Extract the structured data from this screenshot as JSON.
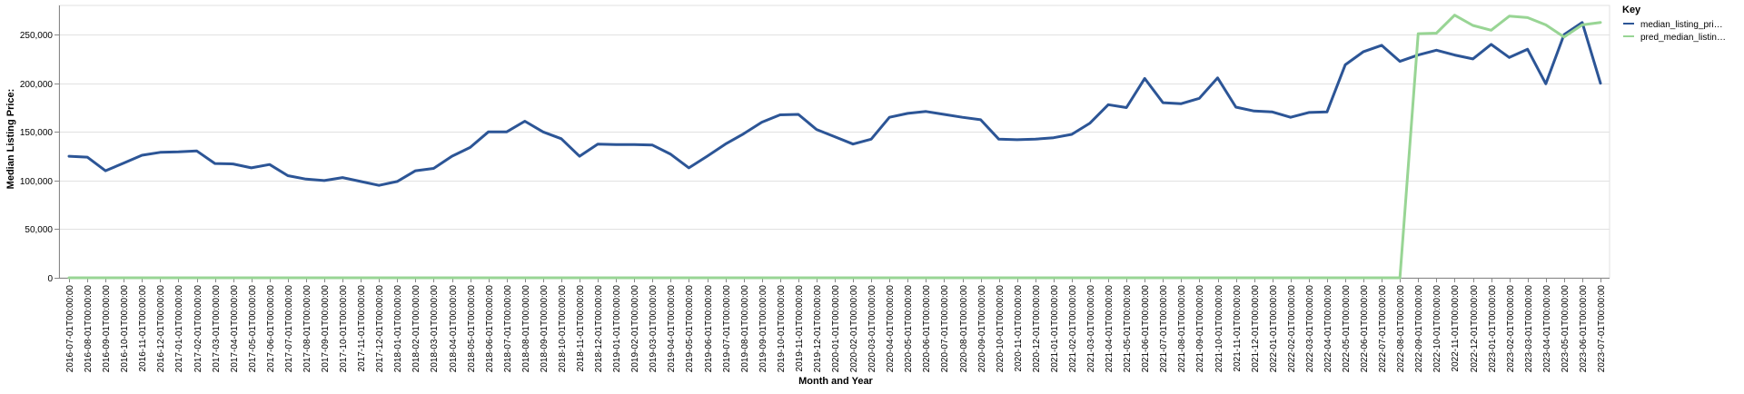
{
  "chart_data": {
    "type": "line",
    "xlabel": "Month and Year",
    "ylabel": "Median Listing Price:",
    "ylim": [
      0,
      280000
    ],
    "yticks": [
      0,
      50000,
      100000,
      150000,
      200000,
      250000
    ],
    "ytick_labels": [
      "0",
      "50,000",
      "100,000",
      "150,000",
      "200,000",
      "250,000"
    ],
    "grid": true,
    "legend": {
      "title": "Key",
      "position": "right",
      "labels": [
        "median_listing_pri…",
        "pred_median_listin…"
      ]
    },
    "x": [
      "2016-07-01T00:00:00",
      "2016-08-01T00:00:00",
      "2016-09-01T00:00:00",
      "2016-10-01T00:00:00",
      "2016-11-01T00:00:00",
      "2016-12-01T00:00:00",
      "2017-01-01T00:00:00",
      "2017-02-01T00:00:00",
      "2017-03-01T00:00:00",
      "2017-04-01T00:00:00",
      "2017-05-01T00:00:00",
      "2017-06-01T00:00:00",
      "2017-07-01T00:00:00",
      "2017-08-01T00:00:00",
      "2017-09-01T00:00:00",
      "2017-10-01T00:00:00",
      "2017-11-01T00:00:00",
      "2017-12-01T00:00:00",
      "2018-01-01T00:00:00",
      "2018-02-01T00:00:00",
      "2018-03-01T00:00:00",
      "2018-04-01T00:00:00",
      "2018-05-01T00:00:00",
      "2018-06-01T00:00:00",
      "2018-07-01T00:00:00",
      "2018-08-01T00:00:00",
      "2018-09-01T00:00:00",
      "2018-10-01T00:00:00",
      "2018-11-01T00:00:00",
      "2018-12-01T00:00:00",
      "2019-01-01T00:00:00",
      "2019-02-01T00:00:00",
      "2019-03-01T00:00:00",
      "2019-04-01T00:00:00",
      "2019-05-01T00:00:00",
      "2019-06-01T00:00:00",
      "2019-07-01T00:00:00",
      "2019-08-01T00:00:00",
      "2019-09-01T00:00:00",
      "2019-10-01T00:00:00",
      "2019-11-01T00:00:00",
      "2019-12-01T00:00:00",
      "2020-01-01T00:00:00",
      "2020-02-01T00:00:00",
      "2020-03-01T00:00:00",
      "2020-04-01T00:00:00",
      "2020-05-01T00:00:00",
      "2020-06-01T00:00:00",
      "2020-07-01T00:00:00",
      "2020-08-01T00:00:00",
      "2020-09-01T00:00:00",
      "2020-10-01T00:00:00",
      "2020-11-01T00:00:00",
      "2020-12-01T00:00:00",
      "2021-01-01T00:00:00",
      "2021-02-01T00:00:00",
      "2021-03-01T00:00:00",
      "2021-04-01T00:00:00",
      "2021-05-01T00:00:00",
      "2021-06-01T00:00:00",
      "2021-07-01T00:00:00",
      "2021-08-01T00:00:00",
      "2021-09-01T00:00:00",
      "2021-10-01T00:00:00",
      "2021-11-01T00:00:00",
      "2021-12-01T00:00:00",
      "2022-01-01T00:00:00",
      "2022-02-01T00:00:00",
      "2022-03-01T00:00:00",
      "2022-04-01T00:00:00",
      "2022-05-01T00:00:00",
      "2022-06-01T00:00:00",
      "2022-07-01T00:00:00",
      "2022-08-01T00:00:00",
      "2022-09-01T00:00:00",
      "2022-10-01T00:00:00",
      "2022-11-01T00:00:00",
      "2022-12-01T00:00:00",
      "2023-01-01T00:00:00",
      "2023-02-01T00:00:00",
      "2023-03-01T00:00:00",
      "2023-04-01T00:00:00",
      "2023-05-01T00:00:00",
      "2023-06-01T00:00:00",
      "2023-07-01T00:00:00"
    ],
    "series": [
      {
        "name": "median_listing_pri…",
        "color": "#2c5596",
        "values": [
          125000,
          124000,
          110000,
          118000,
          126000,
          129000,
          129500,
          130500,
          117500,
          117000,
          113000,
          116500,
          105000,
          101500,
          100000,
          103000,
          99000,
          95000,
          99000,
          110000,
          112500,
          125000,
          134000,
          150000,
          150000,
          161000,
          150000,
          143000,
          125000,
          137500,
          137000,
          137000,
          136500,
          127000,
          113000,
          125000,
          137500,
          148000,
          160000,
          167500,
          168000,
          152500,
          145000,
          137500,
          142500,
          165000,
          169000,
          171000,
          168000,
          165000,
          162500,
          142500,
          142000,
          142500,
          144000,
          147500,
          159000,
          178000,
          175000,
          205000,
          180000,
          179000,
          184500,
          205500,
          175500,
          171500,
          170500,
          165000,
          170000,
          170500,
          219000,
          232500,
          239000,
          222500,
          229000,
          234000,
          229000,
          225000,
          240000,
          226500,
          235000,
          199500,
          250000,
          262500,
          200000
        ]
      },
      {
        "name": "pred_median_listin…",
        "color": "#98d594",
        "values": [
          0,
          0,
          0,
          0,
          0,
          0,
          0,
          0,
          0,
          0,
          0,
          0,
          0,
          0,
          0,
          0,
          0,
          0,
          0,
          0,
          0,
          0,
          0,
          0,
          0,
          0,
          0,
          0,
          0,
          0,
          0,
          0,
          0,
          0,
          0,
          0,
          0,
          0,
          0,
          0,
          0,
          0,
          0,
          0,
          0,
          0,
          0,
          0,
          0,
          0,
          0,
          0,
          0,
          0,
          0,
          0,
          0,
          0,
          0,
          0,
          0,
          0,
          0,
          0,
          0,
          0,
          0,
          0,
          0,
          0,
          0,
          0,
          0,
          0,
          251000,
          251500,
          270000,
          259500,
          254500,
          269000,
          267500,
          260000,
          247500,
          260000,
          262500
        ]
      }
    ]
  },
  "style": {
    "grid_color": "#e1e1e1",
    "axis_color": "#888888"
  }
}
